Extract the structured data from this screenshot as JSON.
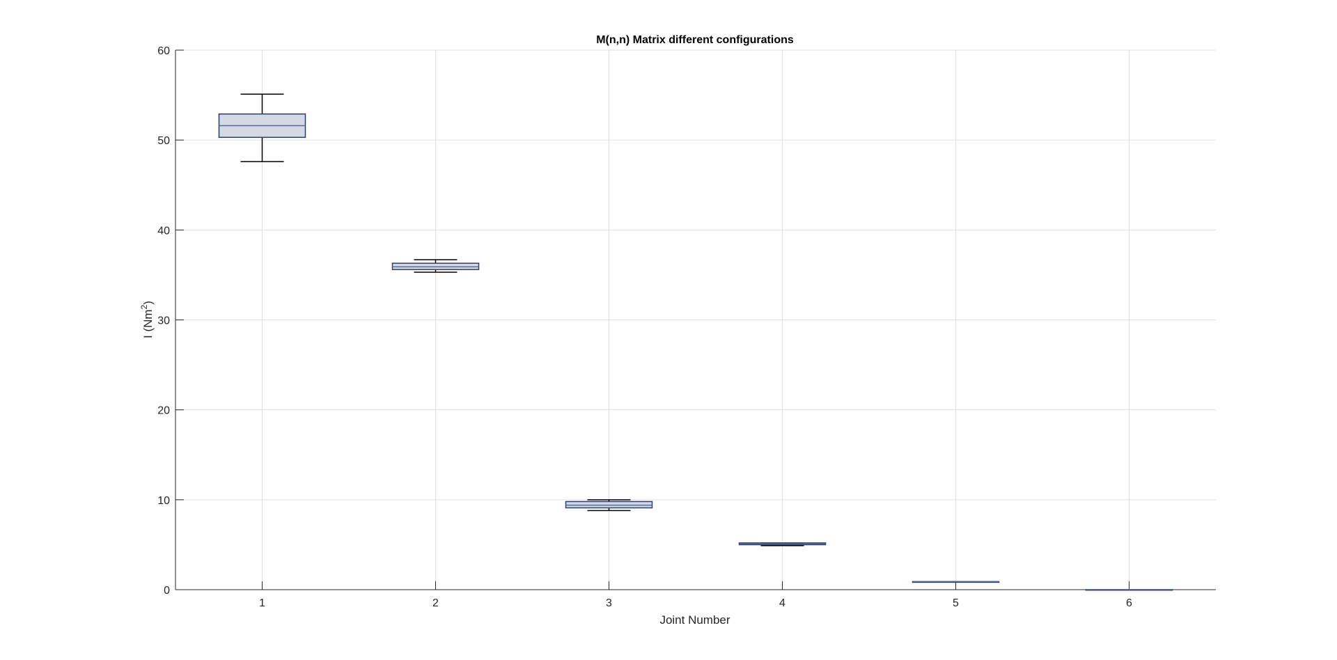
{
  "chart_data": {
    "type": "box",
    "title": "M(n,n) Matrix different configurations",
    "xlabel": "Joint Number",
    "ylabel_main": "I (Nm",
    "ylabel_sup": "2",
    "ylabel_end": ")",
    "ylim": [
      0,
      60
    ],
    "yticks": [
      0,
      10,
      20,
      30,
      40,
      50,
      60
    ],
    "categories": [
      "1",
      "2",
      "3",
      "4",
      "5",
      "6"
    ],
    "grid": true,
    "boxes": [
      {
        "category": "1",
        "whisker_low": 47.6,
        "q1": 50.3,
        "median": 51.6,
        "q3": 52.9,
        "whisker_high": 55.1
      },
      {
        "category": "2",
        "whisker_low": 35.3,
        "q1": 35.6,
        "median": 35.9,
        "q3": 36.3,
        "whisker_high": 36.7
      },
      {
        "category": "3",
        "whisker_low": 8.8,
        "q1": 9.1,
        "median": 9.4,
        "q3": 9.8,
        "whisker_high": 10.0
      },
      {
        "category": "4",
        "whisker_low": 4.9,
        "q1": 5.0,
        "median": 5.1,
        "q3": 5.2,
        "whisker_high": 5.2
      },
      {
        "category": "5",
        "whisker_low": 0.9,
        "q1": 0.9,
        "median": 0.9,
        "q3": 0.9,
        "whisker_high": 0.9
      },
      {
        "category": "6",
        "whisker_low": 0.02,
        "q1": 0.02,
        "median": 0.02,
        "q3": 0.02,
        "whisker_high": 0.02
      }
    ],
    "colors": {
      "box_fill": "#d4d9e6",
      "box_edge": "#2d3e6b",
      "median": "#5a6a94",
      "whisker": "#000000",
      "grid": "#e0e0e0",
      "axis": "#262626"
    }
  }
}
